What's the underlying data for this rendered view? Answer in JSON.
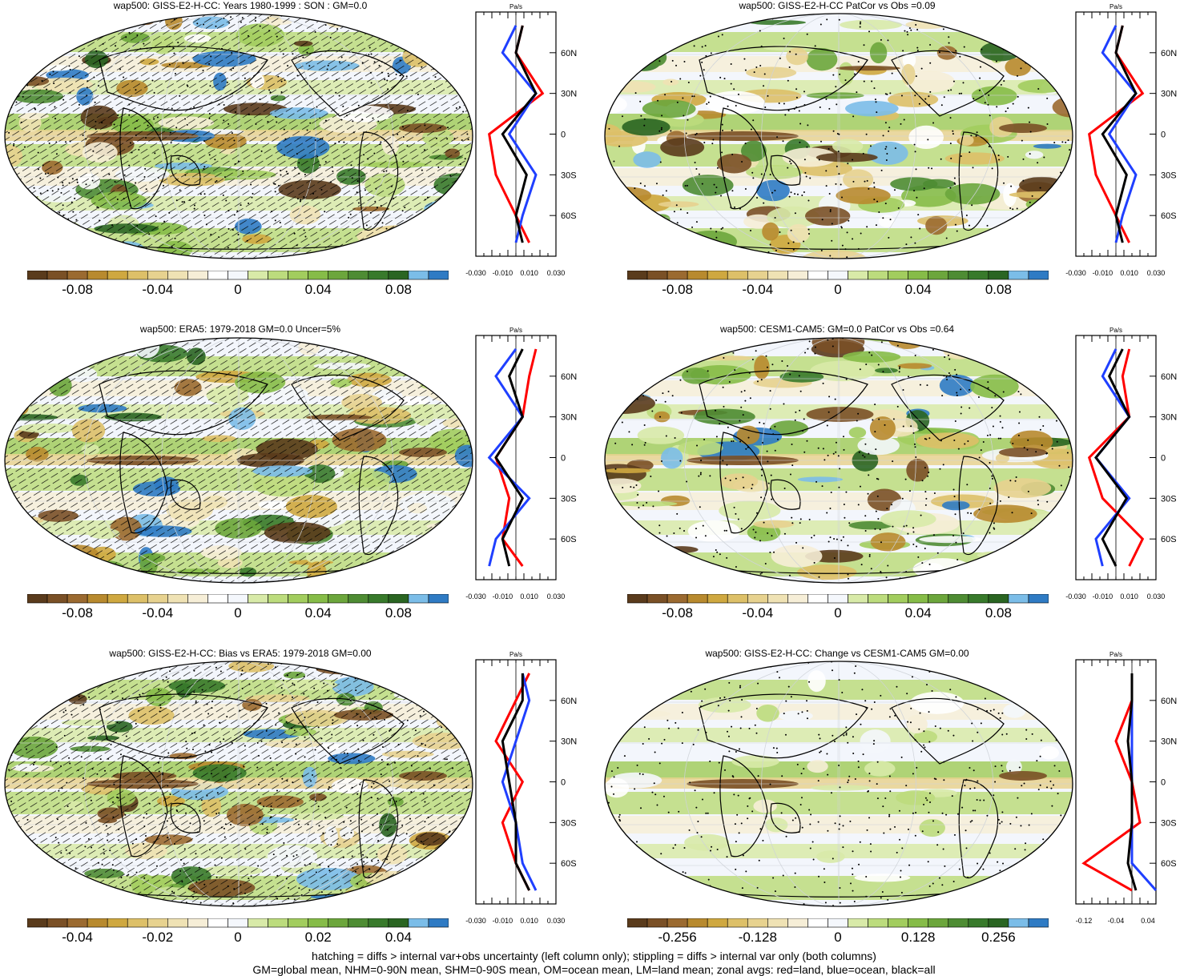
{
  "figure": {
    "footer_line1": "hatching = diffs > internal var+obs uncertainty (left column only); stippling = diffs > internal var only (both columns)",
    "footer_line2": "GM=global mean, NHM=0-90N mean, SHM=0-90S mean, OM=ocean mean, LM=land mean; zonal avgs: red=land, blue=ocean, black=all"
  },
  "colors": {
    "palette": [
      "#5a3b1c",
      "#7a5026",
      "#9b6a30",
      "#b88a2e",
      "#cfa840",
      "#ddc068",
      "#e7d28f",
      "#efe2b4",
      "#f6eed7",
      "#ffffff",
      "#f4f7fc",
      "#d8eaa8",
      "#bcdc7d",
      "#a2cd5e",
      "#86bc48",
      "#6ca63c",
      "#4e8c33",
      "#387a2b",
      "#2a6522",
      "#7bbde8",
      "#2f7bc4"
    ],
    "land": "#000000",
    "ocean": "#1f3fff",
    "all": "#000000",
    "land_red": "#ff0000"
  },
  "panels": [
    {
      "title": "wap500: GISS-E2-H-CC: Years 1980-1999 : SON : GM=0.0",
      "hatching": true,
      "stippling": true,
      "cbar_labels": [
        "-0.08",
        "-0.04",
        "0",
        "0.04",
        "0.08"
      ],
      "zonal_ticks": [
        "-0.030",
        "-0.010",
        "0.010",
        "0.030"
      ],
      "zonal_unit": "Pa/s",
      "lat_labels": [
        "60N",
        "30N",
        "0",
        "30S",
        "60S"
      ]
    },
    {
      "title": "wap500: GISS-E2-H-CC PatCor vs Obs =0.09",
      "hatching": false,
      "stippling": true,
      "cbar_labels": [
        "-0.08",
        "-0.04",
        "0",
        "0.04",
        "0.08"
      ],
      "zonal_ticks": [
        "-0.030",
        "-0.010",
        "0.010",
        "0.030"
      ],
      "zonal_unit": "Pa/s",
      "lat_labels": [
        "60N",
        "30N",
        "0",
        "30S",
        "60S"
      ]
    },
    {
      "title": "wap500: ERA5: 1979-2018 GM=0.0 Uncer=5%",
      "hatching": true,
      "stippling": false,
      "cbar_labels": [
        "-0.08",
        "-0.04",
        "0",
        "0.04",
        "0.08"
      ],
      "zonal_ticks": [
        "-0.030",
        "-0.010",
        "0.010",
        "0.030"
      ],
      "zonal_unit": "Pa/s",
      "lat_labels": [
        "60N",
        "30N",
        "0",
        "30S",
        "60S"
      ]
    },
    {
      "title": "wap500: CESM1-CAM5: GM=0.0 PatCor vs Obs =0.64",
      "hatching": false,
      "stippling": true,
      "cbar_labels": [
        "-0.08",
        "-0.04",
        "0",
        "0.04",
        "0.08"
      ],
      "zonal_ticks": [
        "-0.030",
        "-0.010",
        "0.010",
        "0.030"
      ],
      "zonal_unit": "Pa/s",
      "lat_labels": [
        "60N",
        "30N",
        "0",
        "30S",
        "60S"
      ]
    },
    {
      "title": "wap500: GISS-E2-H-CC: Bias vs ERA5: 1979-2018  GM=0.00",
      "hatching": true,
      "stippling": true,
      "cbar_labels": [
        "-0.04",
        "-0.02",
        "0",
        "0.02",
        "0.04"
      ],
      "zonal_ticks": [
        "-0.030",
        "-0.010",
        "0.010",
        "0.030"
      ],
      "zonal_unit": "Pa/s",
      "lat_labels": [
        "60N",
        "30N",
        "0",
        "30S",
        "60S"
      ]
    },
    {
      "title": "wap500: GISS-E2-H-CC: Change vs CESM1-CAM5 GM=0.00",
      "hatching": false,
      "stippling": true,
      "cbar_labels": [
        "-0.256",
        "-0.128",
        "0",
        "0.128",
        "0.256"
      ],
      "zonal_ticks": [
        "-0.12",
        "-0.04",
        "0.04"
      ],
      "zonal_unit": "Pa/s",
      "lat_labels": [
        "60N",
        "30N",
        "0",
        "30S",
        "60S"
      ]
    }
  ],
  "chart_data": [
    {
      "type": "heatmap",
      "title": "wap500: GISS-E2-H-CC: Years 1980-1999 : SON : GM=0.0",
      "colorbar_ticks": [
        -0.08,
        -0.04,
        0,
        0.04,
        0.08
      ],
      "zonal_profile": {
        "lat": [
          80,
          60,
          30,
          0,
          -30,
          -60,
          -80
        ],
        "land": [
          0.005,
          0.0,
          0.02,
          -0.02,
          -0.015,
          0.0,
          0.01
        ],
        "ocean": [
          0.0,
          -0.01,
          0.015,
          -0.005,
          0.015,
          0.005,
          0.0
        ],
        "all": [
          0.005,
          0.0,
          0.015,
          -0.01,
          0.008,
          0.0,
          0.005
        ],
        "xlim": [
          -0.03,
          0.03
        ]
      }
    },
    {
      "type": "heatmap",
      "title": "wap500: GISS-E2-H-CC PatCor vs Obs =0.09",
      "colorbar_ticks": [
        -0.08,
        -0.04,
        0,
        0.04,
        0.08
      ],
      "zonal_profile": {
        "lat": [
          80,
          60,
          30,
          0,
          -30,
          -60,
          -80
        ],
        "land": [
          0.005,
          0.0,
          0.02,
          -0.02,
          -0.015,
          0.0,
          0.01
        ],
        "ocean": [
          0.0,
          -0.01,
          0.015,
          -0.005,
          0.015,
          0.005,
          0.0
        ],
        "all": [
          0.005,
          0.0,
          0.015,
          -0.01,
          0.008,
          0.0,
          0.005
        ],
        "xlim": [
          -0.03,
          0.03
        ]
      }
    },
    {
      "type": "heatmap",
      "title": "wap500: ERA5: 1979-2018 GM=0.0 Uncer=5%",
      "colorbar_ticks": [
        -0.08,
        -0.04,
        0,
        0.04,
        0.08
      ],
      "zonal_profile": {
        "lat": [
          80,
          60,
          30,
          0,
          -30,
          -60,
          -80
        ],
        "land": [
          0.015,
          0.01,
          0.005,
          -0.015,
          -0.005,
          -0.01,
          0.005
        ],
        "ocean": [
          0.0,
          -0.015,
          0.005,
          -0.02,
          0.01,
          -0.015,
          -0.02
        ],
        "all": [
          0.005,
          -0.005,
          0.005,
          -0.015,
          0.005,
          -0.01,
          -0.005
        ],
        "xlim": [
          -0.03,
          0.03
        ]
      }
    },
    {
      "type": "heatmap",
      "title": "wap500: CESM1-CAM5: GM=0.0 PatCor vs Obs =0.64",
      "colorbar_ticks": [
        -0.08,
        -0.04,
        0,
        0.04,
        0.08
      ],
      "zonal_profile": {
        "lat": [
          80,
          60,
          30,
          0,
          -30,
          -60,
          -80
        ],
        "land": [
          0.01,
          0.005,
          0.01,
          -0.02,
          -0.01,
          0.02,
          0.01
        ],
        "ocean": [
          0.0,
          -0.01,
          0.01,
          -0.015,
          0.01,
          -0.015,
          -0.01
        ],
        "all": [
          0.005,
          -0.005,
          0.01,
          -0.015,
          0.008,
          -0.01,
          0.0
        ],
        "xlim": [
          -0.03,
          0.03
        ]
      }
    },
    {
      "type": "heatmap",
      "title": "wap500: GISS-E2-H-CC: Bias vs ERA5: 1979-2018  GM=0.00",
      "colorbar_ticks": [
        -0.04,
        -0.02,
        0,
        0.02,
        0.04
      ],
      "zonal_profile": {
        "lat": [
          80,
          60,
          30,
          0,
          -30,
          -60,
          -80
        ],
        "land": [
          0.01,
          0.0,
          -0.015,
          0.005,
          -0.01,
          0.0,
          0.01
        ],
        "ocean": [
          0.005,
          0.01,
          0.0,
          -0.01,
          0.0,
          0.005,
          0.015
        ],
        "all": [
          0.005,
          0.005,
          -0.01,
          -0.005,
          0.0,
          0.0,
          0.01
        ],
        "xlim": [
          -0.03,
          0.03
        ]
      }
    },
    {
      "type": "heatmap",
      "title": "wap500: GISS-E2-H-CC: Change vs CESM1-CAM5 GM=0.00",
      "colorbar_ticks": [
        -0.256,
        -0.128,
        0,
        0.128,
        0.256
      ],
      "zonal_profile": {
        "lat": [
          80,
          60,
          30,
          0,
          -30,
          -60,
          -80
        ],
        "land": [
          0.0,
          0.0,
          -0.04,
          0.0,
          0.02,
          -0.12,
          0.0
        ],
        "ocean": [
          0.0,
          0.0,
          0.0,
          0.0,
          0.0,
          0.0,
          0.06
        ],
        "all": [
          0.0,
          0.0,
          -0.01,
          0.0,
          0.0,
          -0.01,
          0.01
        ],
        "xlim": [
          -0.14,
          0.06
        ]
      }
    }
  ]
}
